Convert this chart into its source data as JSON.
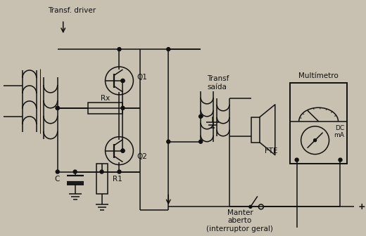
{
  "bg_color": "#c8c0b0",
  "line_color": "#111111",
  "labels": {
    "transf_driver": "Transf. driver",
    "transf_saida": "Transf\nsaída",
    "multimetro": "Multímetro",
    "q1": "Q1",
    "q2": "Q2",
    "rx": "Rx",
    "r1": "R1",
    "c": "C",
    "fte": "FTE",
    "dc_ma": "DC\nmA",
    "manter": "Manter\naberto\n(interruptor geral)",
    "plus": "+"
  }
}
